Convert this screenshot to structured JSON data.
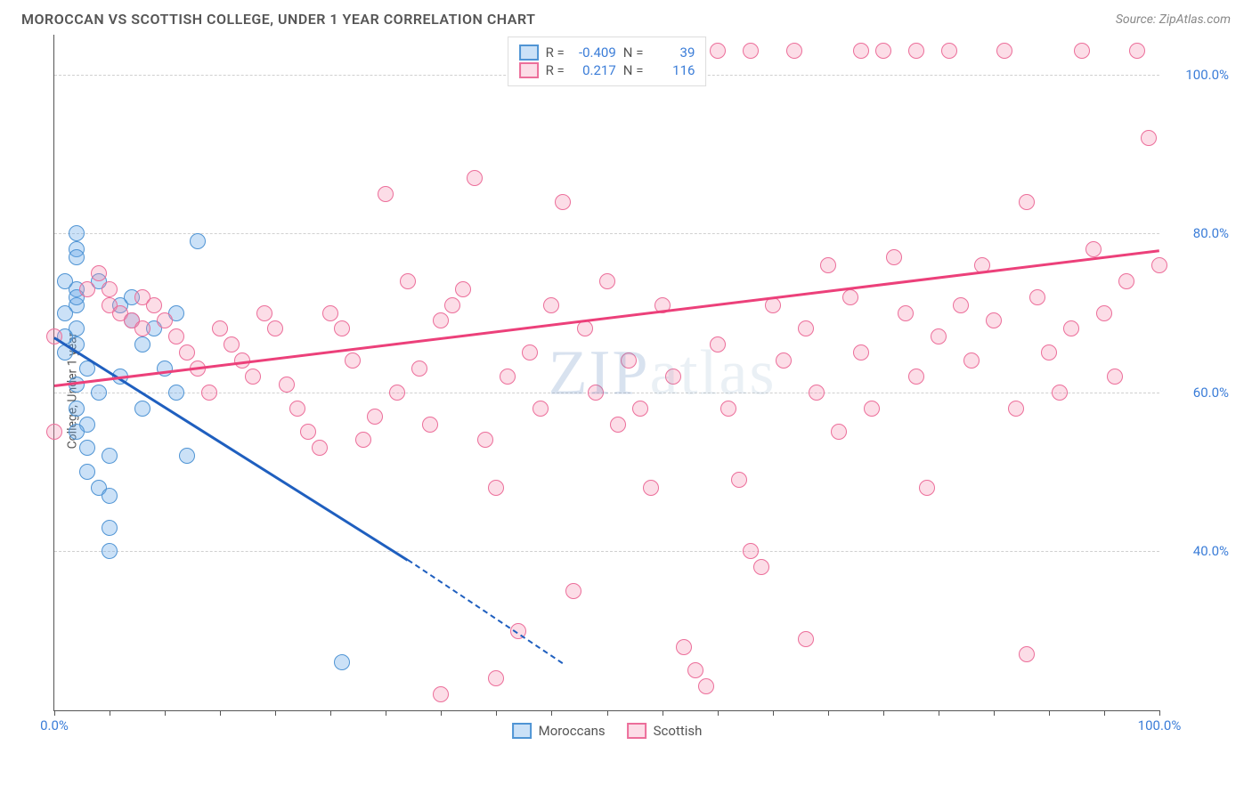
{
  "title": "MOROCCAN VS SCOTTISH COLLEGE, UNDER 1 YEAR CORRELATION CHART",
  "source": "Source: ZipAtlas.com",
  "watermark_a": "ZIP",
  "watermark_b": "atlas",
  "ylabel": "College, Under 1 year",
  "chart": {
    "type": "scatter",
    "xlim": [
      0,
      100
    ],
    "ylim": [
      20,
      105
    ],
    "y_gridlines": [
      40,
      60,
      80,
      100
    ],
    "y_tick_labels": [
      "40.0%",
      "60.0%",
      "80.0%",
      "100.0%"
    ],
    "x_tick_labels": {
      "left": "0.0%",
      "right": "100.0%"
    },
    "x_minor_ticks": [
      0,
      5,
      10,
      15,
      20,
      25,
      30,
      35,
      40,
      45,
      50,
      55,
      60,
      65,
      70,
      75,
      80,
      85,
      90,
      95,
      100
    ],
    "background_color": "#ffffff",
    "grid_color": "#d0d0d0",
    "point_radius": 9,
    "series": [
      {
        "name": "Moroccans",
        "fill": "rgba(107,170,232,0.35)",
        "stroke": "#4f94d4",
        "R": "-0.409",
        "N": "39",
        "trend": {
          "x1": 0,
          "y1": 67,
          "x2": 32,
          "y2": 39,
          "color": "#1f5fbf",
          "extend_x2": 46,
          "extend_y2": 26
        },
        "points": [
          [
            2,
            80
          ],
          [
            2,
            78
          ],
          [
            2,
            77
          ],
          [
            1,
            74
          ],
          [
            2,
            73
          ],
          [
            2,
            71
          ],
          [
            1,
            70
          ],
          [
            2,
            68
          ],
          [
            2,
            66
          ],
          [
            1,
            65
          ],
          [
            3,
            63
          ],
          [
            2,
            61
          ],
          [
            4,
            60
          ],
          [
            2,
            58
          ],
          [
            3,
            56
          ],
          [
            2,
            55
          ],
          [
            3,
            53
          ],
          [
            5,
            52
          ],
          [
            3,
            50
          ],
          [
            4,
            48
          ],
          [
            5,
            47
          ],
          [
            5,
            43
          ],
          [
            5,
            40
          ],
          [
            2,
            72
          ],
          [
            1,
            67
          ],
          [
            8,
            66
          ],
          [
            10,
            63
          ],
          [
            11,
            60
          ],
          [
            12,
            52
          ],
          [
            7,
            69
          ],
          [
            6,
            71
          ],
          [
            9,
            68
          ],
          [
            7,
            72
          ],
          [
            13,
            79
          ],
          [
            11,
            70
          ],
          [
            8,
            58
          ],
          [
            26,
            26
          ],
          [
            6,
            62
          ],
          [
            4,
            74
          ]
        ]
      },
      {
        "name": "Scottish",
        "fill": "rgba(244,143,177,0.30)",
        "stroke": "#ec6e9a",
        "R": "0.217",
        "N": "116",
        "trend": {
          "x1": 0,
          "y1": 61,
          "x2": 100,
          "y2": 78,
          "color": "#ec407a"
        },
        "points": [
          [
            0,
            67
          ],
          [
            0,
            55
          ],
          [
            3,
            73
          ],
          [
            4,
            75
          ],
          [
            5,
            73
          ],
          [
            5,
            71
          ],
          [
            6,
            70
          ],
          [
            7,
            69
          ],
          [
            8,
            68
          ],
          [
            8,
            72
          ],
          [
            9,
            71
          ],
          [
            10,
            69
          ],
          [
            11,
            67
          ],
          [
            12,
            65
          ],
          [
            13,
            63
          ],
          [
            14,
            60
          ],
          [
            15,
            68
          ],
          [
            16,
            66
          ],
          [
            17,
            64
          ],
          [
            18,
            62
          ],
          [
            19,
            70
          ],
          [
            20,
            68
          ],
          [
            21,
            61
          ],
          [
            22,
            58
          ],
          [
            23,
            55
          ],
          [
            24,
            53
          ],
          [
            25,
            70
          ],
          [
            26,
            68
          ],
          [
            27,
            64
          ],
          [
            28,
            54
          ],
          [
            29,
            57
          ],
          [
            30,
            85
          ],
          [
            31,
            60
          ],
          [
            32,
            74
          ],
          [
            33,
            63
          ],
          [
            34,
            56
          ],
          [
            35,
            69
          ],
          [
            36,
            71
          ],
          [
            37,
            73
          ],
          [
            38,
            87
          ],
          [
            39,
            54
          ],
          [
            40,
            48
          ],
          [
            41,
            62
          ],
          [
            42,
            30
          ],
          [
            43,
            65
          ],
          [
            44,
            58
          ],
          [
            45,
            71
          ],
          [
            46,
            84
          ],
          [
            47,
            35
          ],
          [
            48,
            68
          ],
          [
            49,
            60
          ],
          [
            50,
            74
          ],
          [
            51,
            56
          ],
          [
            52,
            64
          ],
          [
            53,
            58
          ],
          [
            54,
            48
          ],
          [
            55,
            71
          ],
          [
            56,
            62
          ],
          [
            57,
            28
          ],
          [
            58,
            25
          ],
          [
            59,
            23
          ],
          [
            60,
            66
          ],
          [
            61,
            58
          ],
          [
            62,
            49
          ],
          [
            63,
            40
          ],
          [
            64,
            38
          ],
          [
            65,
            71
          ],
          [
            66,
            64
          ],
          [
            67,
            103
          ],
          [
            68,
            68
          ],
          [
            69,
            60
          ],
          [
            70,
            76
          ],
          [
            71,
            55
          ],
          [
            72,
            72
          ],
          [
            73,
            65
          ],
          [
            74,
            58
          ],
          [
            75,
            103
          ],
          [
            76,
            77
          ],
          [
            77,
            70
          ],
          [
            78,
            62
          ],
          [
            79,
            48
          ],
          [
            80,
            67
          ],
          [
            81,
            103
          ],
          [
            82,
            71
          ],
          [
            83,
            64
          ],
          [
            84,
            76
          ],
          [
            85,
            69
          ],
          [
            86,
            103
          ],
          [
            87,
            58
          ],
          [
            88,
            84
          ],
          [
            89,
            72
          ],
          [
            90,
            65
          ],
          [
            91,
            60
          ],
          [
            92,
            68
          ],
          [
            93,
            103
          ],
          [
            94,
            78
          ],
          [
            95,
            70
          ],
          [
            96,
            62
          ],
          [
            97,
            74
          ],
          [
            98,
            103
          ],
          [
            99,
            92
          ],
          [
            100,
            76
          ],
          [
            46,
            103
          ],
          [
            50,
            103
          ],
          [
            55,
            103
          ],
          [
            60,
            103
          ],
          [
            35,
            22
          ],
          [
            40,
            24
          ],
          [
            68,
            29
          ],
          [
            88,
            27
          ],
          [
            44,
            103
          ],
          [
            52,
            103
          ],
          [
            58,
            103
          ],
          [
            63,
            103
          ],
          [
            73,
            103
          ],
          [
            78,
            103
          ]
        ]
      }
    ]
  }
}
